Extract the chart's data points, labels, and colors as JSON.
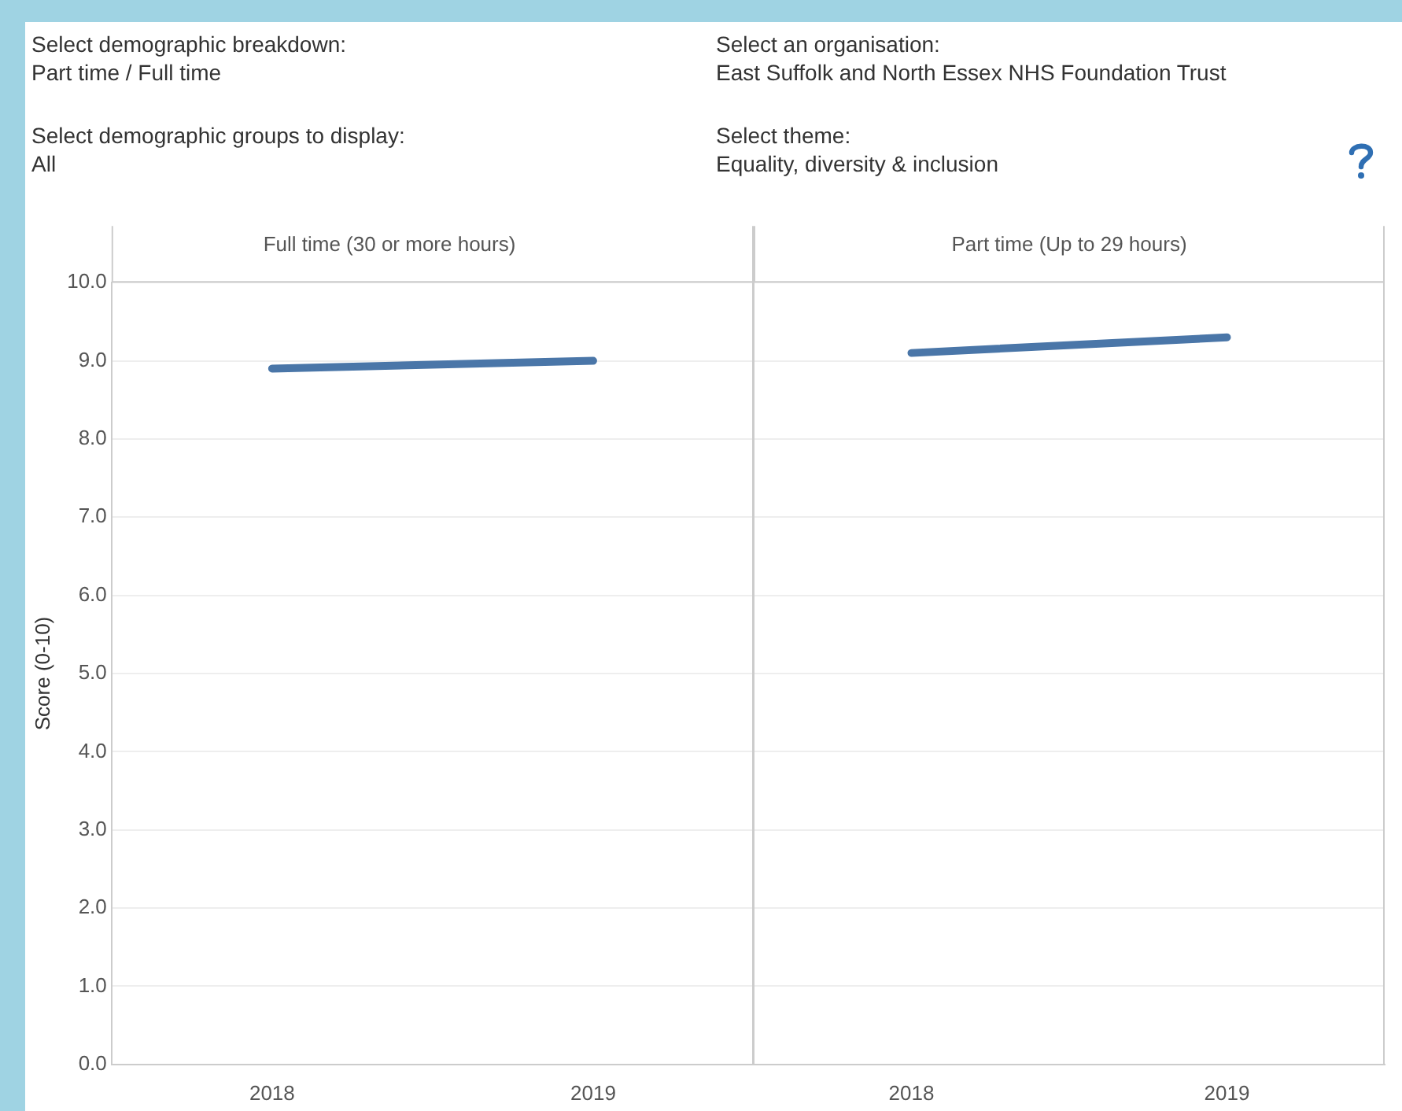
{
  "chart_data": [
    {
      "type": "line",
      "title": "Full time (30 or more hours)",
      "ylabel": "Score (0-10)",
      "categories": [
        "2018",
        "2019"
      ],
      "series": [
        {
          "color": "#4a76a8",
          "values": [
            8.9,
            9.0
          ]
        }
      ],
      "ylim": [
        0,
        10
      ],
      "yticks": [
        {
          "value": 0,
          "label": "0.0"
        },
        {
          "value": 1,
          "label": "1.0"
        },
        {
          "value": 2,
          "label": "2.0"
        },
        {
          "value": 3,
          "label": "3.0"
        },
        {
          "value": 4,
          "label": "4.0"
        },
        {
          "value": 5,
          "label": "5.0"
        },
        {
          "value": 6,
          "label": "6.0"
        },
        {
          "value": 7,
          "label": "7.0"
        },
        {
          "value": 8,
          "label": "8.0"
        },
        {
          "value": 9,
          "label": "9.0"
        },
        {
          "value": 10,
          "label": "10.0"
        }
      ],
      "grid": "y",
      "legend": false,
      "marker": "none",
      "line_style": "solid",
      "annotations": [
        "Select demographic breakdown:",
        "Part time / Full time",
        "Select an organisation:",
        "East Suffolk and North Essex NHS Foundation Trust",
        "Select demographic groups to display:",
        "All",
        "Select theme:",
        "Equality, diversity & inclusion"
      ]
    },
    {
      "type": "line",
      "title": "Part time (Up to 29 hours)",
      "categories": [
        "2018",
        "2019"
      ],
      "series": [
        {
          "color": "#4a76a8",
          "values": [
            9.1,
            9.3
          ]
        }
      ],
      "ylim": [
        0,
        10
      ],
      "yticks": [
        {
          "value": 0,
          "label": null
        },
        {
          "value": 1,
          "label": null
        },
        {
          "value": 2,
          "label": null
        },
        {
          "value": 3,
          "label": null
        },
        {
          "value": 4,
          "label": null
        },
        {
          "value": 5,
          "label": null
        },
        {
          "value": 6,
          "label": null
        },
        {
          "value": 7,
          "label": null
        },
        {
          "value": 8,
          "label": null
        },
        {
          "value": 9,
          "label": null
        },
        {
          "value": 10,
          "label": null
        }
      ],
      "grid": "y",
      "legend": false,
      "marker": "none",
      "line_style": "solid",
      "tick_labels": "x"
    }
  ]
}
